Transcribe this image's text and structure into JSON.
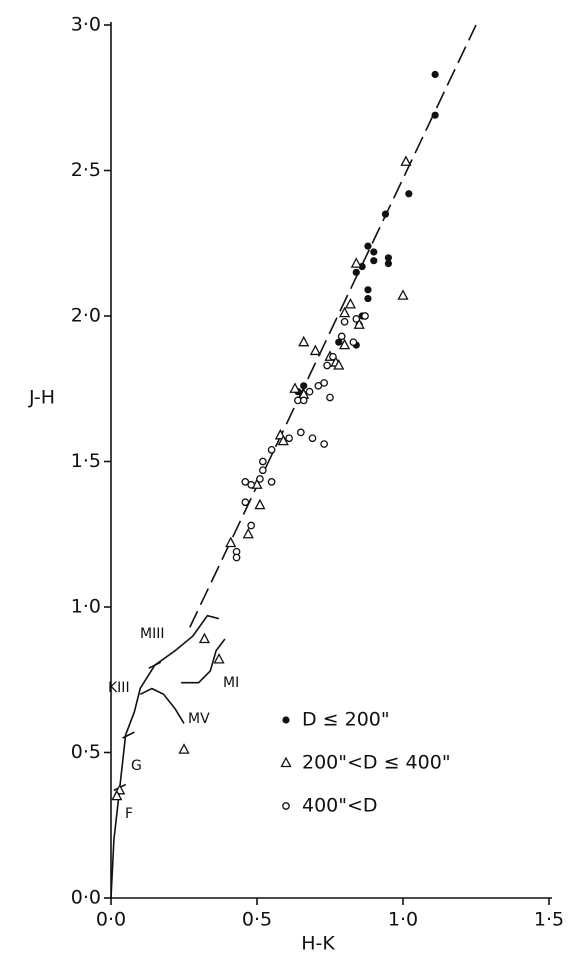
{
  "chart_data": {
    "type": "scatter",
    "xlabel": "H-K",
    "ylabel": "J-H",
    "xlim": [
      0,
      1.5
    ],
    "ylim": [
      0,
      3
    ],
    "xticks": [
      {
        "value": 0,
        "label": "0·0"
      },
      {
        "value": 0.5,
        "label": "0·5"
      },
      {
        "value": 1,
        "label": "1·0"
      },
      {
        "value": 1.5,
        "label": "1·5"
      }
    ],
    "yticks": [
      {
        "value": 0,
        "label": "0·0"
      },
      {
        "value": 0.5,
        "label": "0·5"
      },
      {
        "value": 1,
        "label": "1·0"
      },
      {
        "value": 1.5,
        "label": "1·5"
      },
      {
        "value": 2,
        "label": "2·0"
      },
      {
        "value": 2.5,
        "label": "2·5"
      },
      {
        "value": 3,
        "label": "3·0"
      }
    ],
    "series": [
      {
        "name": "D ≤ 200\"",
        "marker": "filled-circle",
        "color": "#111111",
        "x": [
          1.11,
          1.11,
          1.02,
          0.94,
          0.88,
          0.9,
          0.95,
          0.95,
          0.9,
          0.86,
          0.84,
          0.88,
          0.88,
          0.86,
          0.85,
          0.78,
          0.84,
          0.66,
          0.64,
          0.66
        ],
        "values": [
          2.83,
          2.69,
          2.42,
          2.35,
          2.24,
          2.22,
          2.2,
          2.18,
          2.19,
          2.17,
          2.15,
          2.09,
          2.06,
          2.0,
          1.97,
          1.91,
          1.9,
          1.76,
          1.74,
          1.72
        ]
      },
      {
        "name": "200\"<D ≤ 400\"",
        "marker": "triangle",
        "color": "#111111",
        "x": [
          1.01,
          1.0,
          0.84,
          0.8,
          0.82,
          0.85,
          0.66,
          0.7,
          0.75,
          0.77,
          0.78,
          0.8,
          0.63,
          0.66,
          0.58,
          0.59,
          0.5,
          0.51,
          0.47,
          0.41,
          0.32,
          0.37,
          0.25,
          0.03,
          0.02
        ],
        "values": [
          2.53,
          2.07,
          2.18,
          2.01,
          2.04,
          1.97,
          1.91,
          1.88,
          1.86,
          1.84,
          1.83,
          1.9,
          1.75,
          1.73,
          1.59,
          1.57,
          1.42,
          1.35,
          1.25,
          1.22,
          0.89,
          0.82,
          0.51,
          0.37,
          0.35
        ]
      },
      {
        "name": "400\"<D",
        "marker": "open-circle",
        "color": "#111111",
        "x": [
          0.8,
          0.84,
          0.87,
          0.79,
          0.83,
          0.76,
          0.74,
          0.71,
          0.73,
          0.75,
          0.64,
          0.66,
          0.68,
          0.61,
          0.65,
          0.69,
          0.73,
          0.55,
          0.52,
          0.52,
          0.51,
          0.55,
          0.46,
          0.48,
          0.46,
          0.48,
          0.43,
          0.43
        ],
        "values": [
          1.98,
          1.99,
          2.0,
          1.93,
          1.91,
          1.86,
          1.83,
          1.76,
          1.77,
          1.72,
          1.71,
          1.71,
          1.74,
          1.58,
          1.6,
          1.58,
          1.56,
          1.54,
          1.5,
          1.47,
          1.44,
          1.43,
          1.43,
          1.42,
          1.36,
          1.28,
          1.19,
          1.17
        ]
      }
    ],
    "fit_line": {
      "x": [
        0.27,
        1.25
      ],
      "values": [
        0.93,
        3.0
      ]
    },
    "curves": [
      {
        "x": [
          0.0,
          0.01,
          0.03,
          0.05,
          0.08,
          0.1,
          0.15,
          0.22,
          0.28,
          0.33,
          0.37
        ],
        "values": [
          0.0,
          0.2,
          0.38,
          0.56,
          0.64,
          0.72,
          0.8,
          0.85,
          0.9,
          0.97,
          0.96
        ]
      },
      {
        "x": [
          0.1,
          0.14,
          0.18,
          0.22,
          0.25
        ],
        "values": [
          0.7,
          0.72,
          0.7,
          0.65,
          0.6
        ]
      },
      {
        "x": [
          0.24,
          0.3,
          0.34,
          0.36,
          0.39
        ],
        "values": [
          0.74,
          0.74,
          0.78,
          0.85,
          0.89
        ]
      }
    ],
    "crosses": {
      "x": [
        0.03,
        0.06,
        0.15
      ],
      "values": [
        0.38,
        0.56,
        0.8
      ]
    },
    "annotations": [
      "MIII",
      "KIII",
      "MI",
      "MV",
      "G",
      "F"
    ]
  }
}
